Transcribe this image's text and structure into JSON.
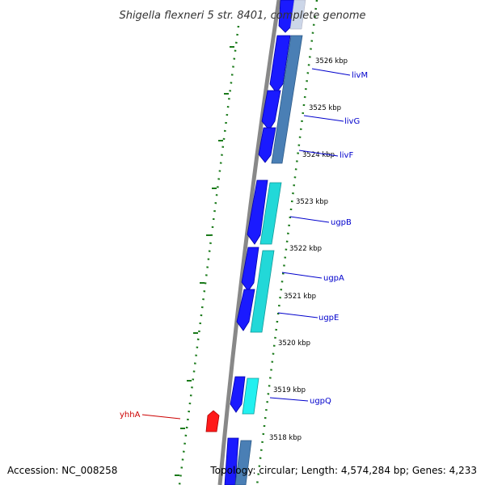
{
  "title": "Shigella flexneri 5 str. 8401, complete genome",
  "footer": {
    "accession": "Accession: NC_008258",
    "topology": "Topology: circular; Length: 4,574,284 bp; Genes: 4,233"
  },
  "colors": {
    "forward_gene": "#1a1aff",
    "reverse_gene_blue": "#4a7fb5",
    "reverse_gene_cyan": "#22d8d8",
    "highlight_gene": "#ff1a1a",
    "backbone": "#888888",
    "tick_dots": "#1a7a1a",
    "gene_label": "#0000cc",
    "highlight_label": "#cc0000"
  },
  "ticks": [
    {
      "label": "3526 kbp"
    },
    {
      "label": "3525 kbp"
    },
    {
      "label": "3524 kbp"
    },
    {
      "label": "3523 kbp"
    },
    {
      "label": "3522 kbp"
    },
    {
      "label": "3521 kbp"
    },
    {
      "label": "3520 kbp"
    },
    {
      "label": "3519 kbp"
    },
    {
      "label": "3518 kbp"
    }
  ],
  "gene_labels": [
    {
      "name": "livM",
      "highlight": false
    },
    {
      "name": "livG",
      "highlight": false
    },
    {
      "name": "livF",
      "highlight": false
    },
    {
      "name": "ugpB",
      "highlight": false
    },
    {
      "name": "ugpA",
      "highlight": false
    },
    {
      "name": "ugpE",
      "highlight": false
    },
    {
      "name": "ugpQ",
      "highlight": false
    },
    {
      "name": "yhhA",
      "highlight": true
    }
  ]
}
